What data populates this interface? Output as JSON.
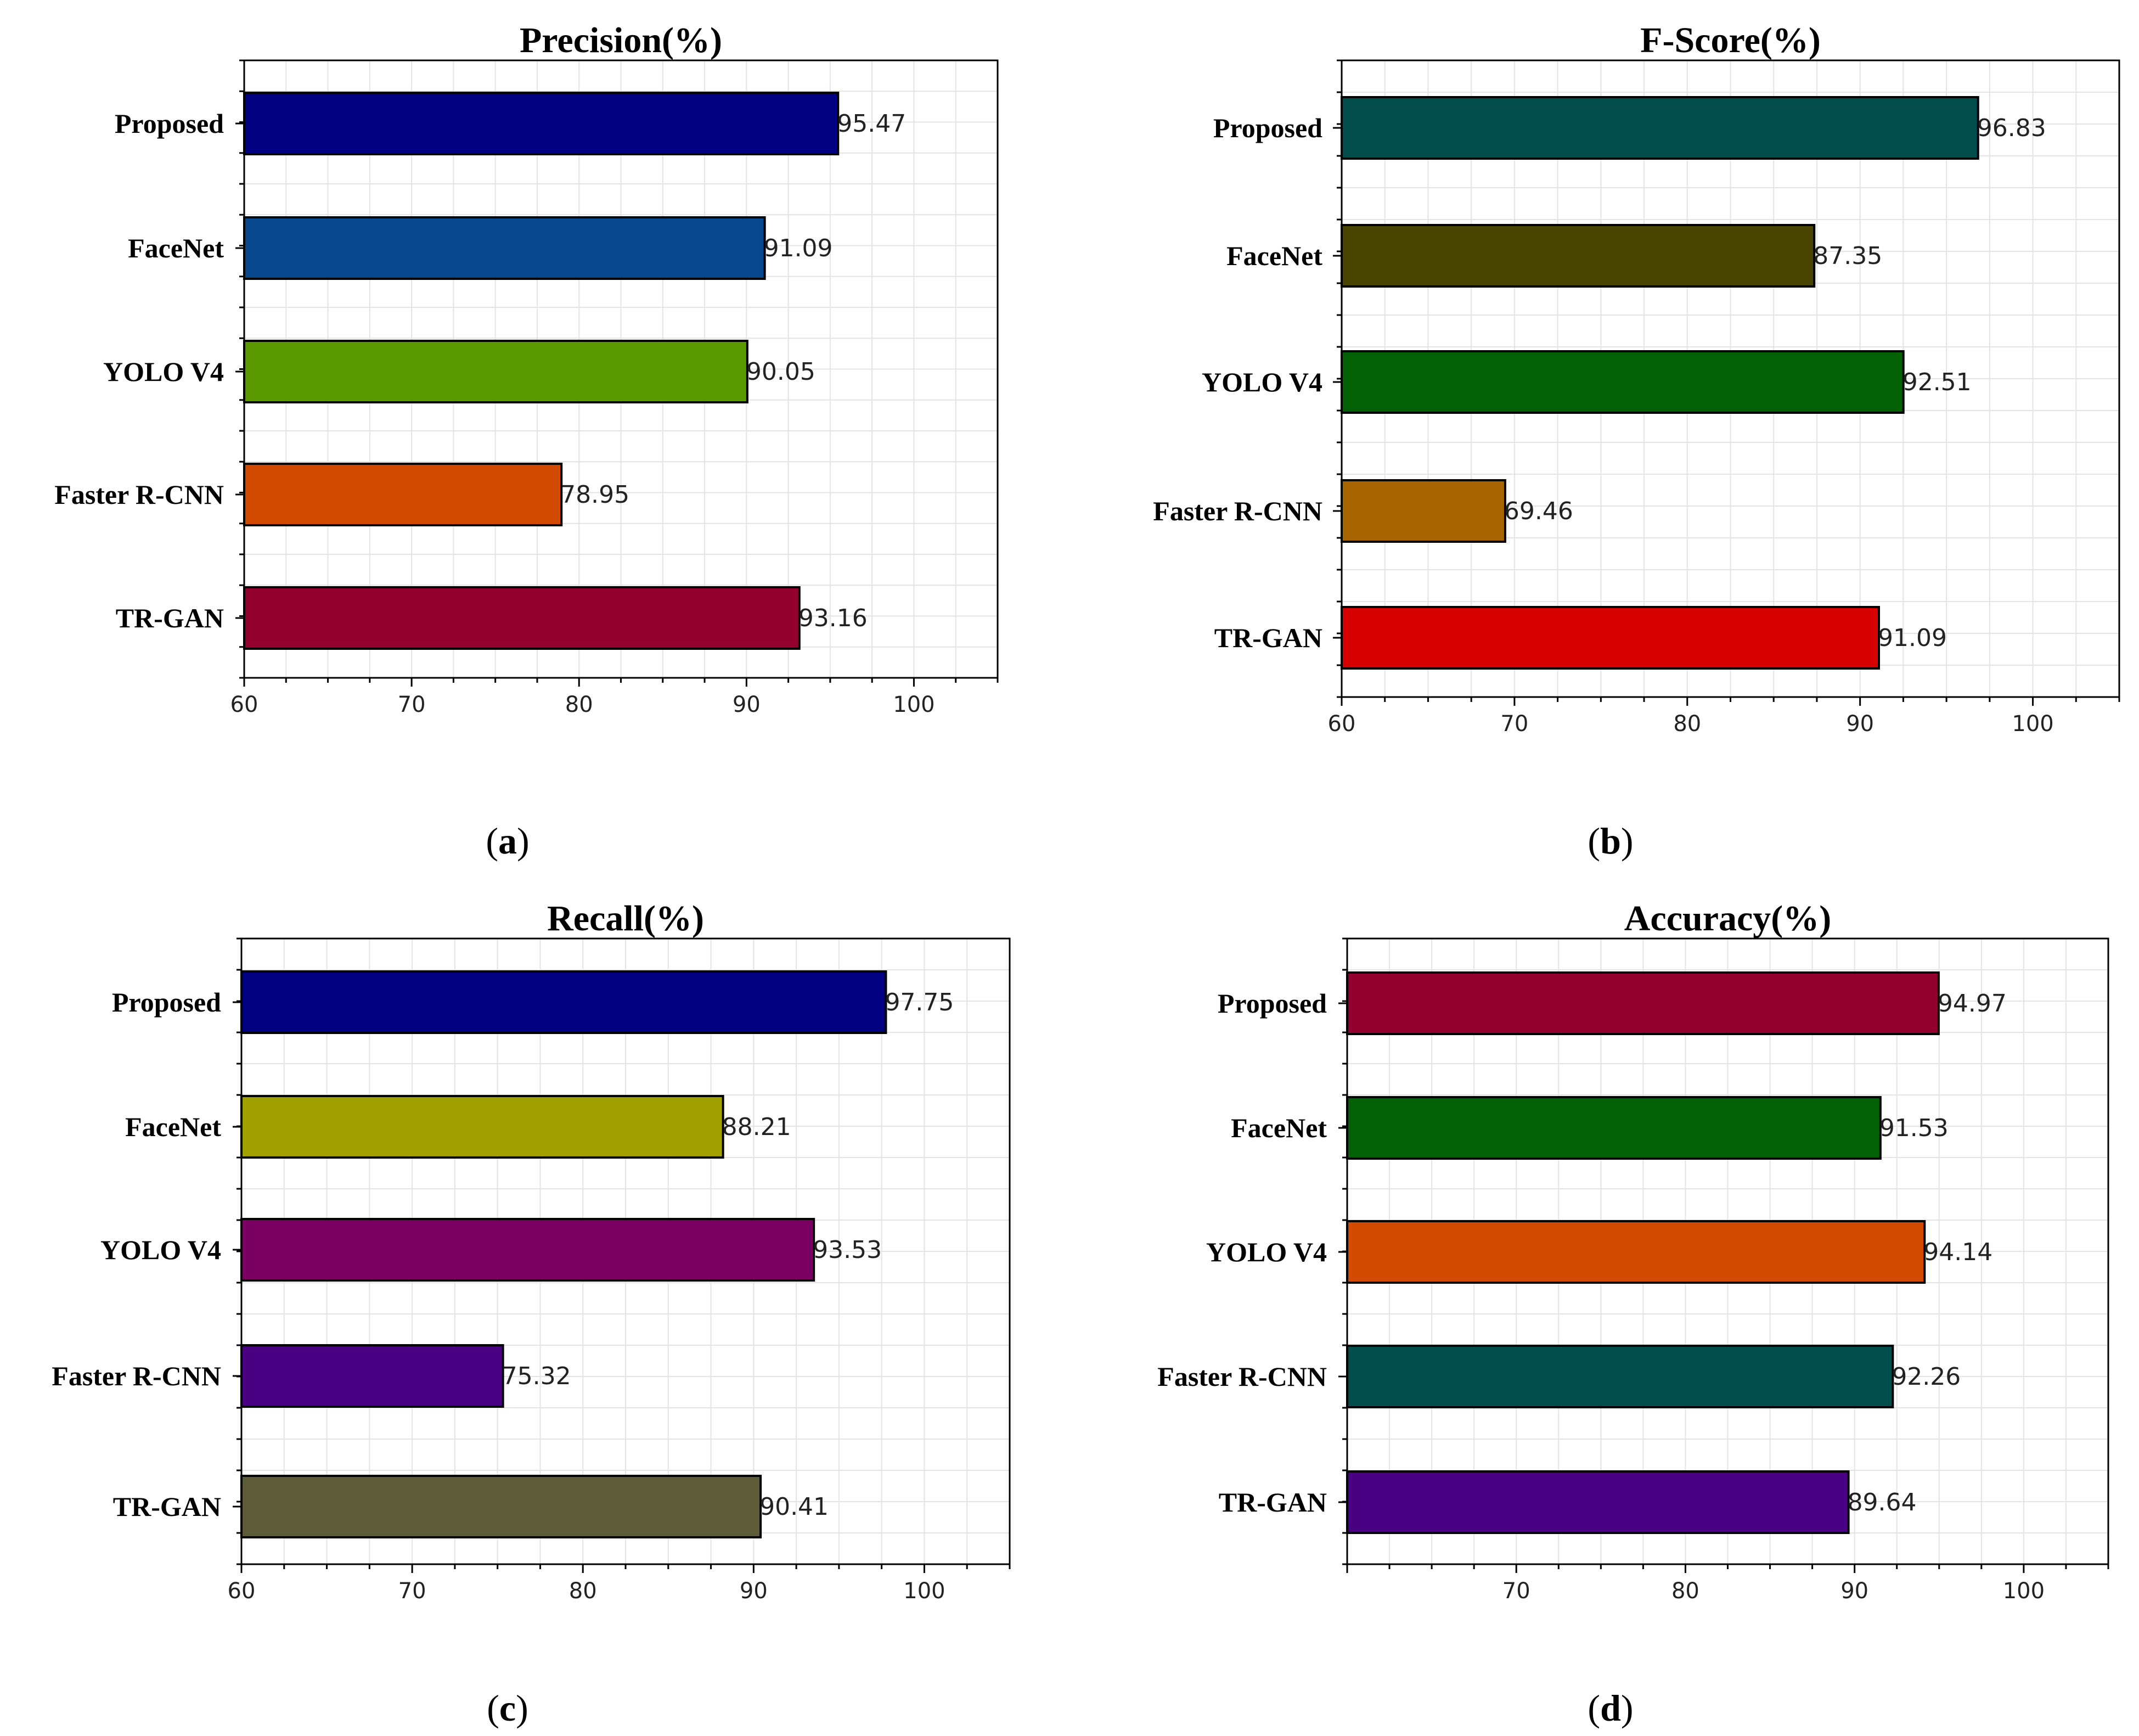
{
  "chart_data": [
    {
      "type": "bar",
      "orientation": "horizontal",
      "title": "Precision(%)",
      "caption": "a",
      "categories": [
        "Proposed",
        "FaceNet",
        "YOLO V4",
        "Faster R-CNN",
        "TR-GAN"
      ],
      "values": [
        95.47,
        91.09,
        90.05,
        78.95,
        93.16
      ],
      "value_labels": [
        "95.47",
        "91.09",
        "90.05",
        "78.95",
        "93.16"
      ],
      "colors": [
        "#000080",
        "#08478c",
        "#5a9a00",
        "#d24a00",
        "#940030"
      ],
      "xlim": [
        60,
        105
      ],
      "xticks": [
        60,
        70,
        80,
        90,
        100
      ],
      "xtick_labels": [
        "60",
        "70",
        "80",
        "90",
        "100"
      ],
      "grid": true
    },
    {
      "type": "bar",
      "orientation": "horizontal",
      "title": "F-Score(%)",
      "caption": "b",
      "categories": [
        "Proposed",
        "FaceNet",
        "YOLO V4",
        "Faster R-CNN",
        "TR-GAN"
      ],
      "values": [
        96.83,
        87.35,
        92.51,
        69.46,
        91.09
      ],
      "value_labels": [
        "96.83",
        "87.35",
        "92.51",
        "69.46",
        "91.09"
      ],
      "colors": [
        "#034d4d",
        "#4a4500",
        "#046004",
        "#a76400",
        "#d60000"
      ],
      "xlim": [
        60,
        105
      ],
      "xticks": [
        60,
        70,
        80,
        90,
        100
      ],
      "xtick_labels": [
        "60",
        "70",
        "80",
        "90",
        "100"
      ],
      "grid": true
    },
    {
      "type": "bar",
      "orientation": "horizontal",
      "title": "Recall(%)",
      "caption": "c",
      "categories": [
        "Proposed",
        "FaceNet",
        "YOLO V4",
        "Faster R-CNN",
        "TR-GAN"
      ],
      "values": [
        97.75,
        88.21,
        93.53,
        75.32,
        90.41
      ],
      "value_labels": [
        "97.75",
        "88.21",
        "93.53",
        "75.32",
        "90.41"
      ],
      "colors": [
        "#000080",
        "#a0a000",
        "#7a0062",
        "#4a0082",
        "#5c5c38"
      ],
      "xlim": [
        60,
        105
      ],
      "xticks": [
        60,
        70,
        80,
        90,
        100
      ],
      "xtick_labels": [
        "60",
        "70",
        "80",
        "90",
        "100"
      ],
      "grid": true
    },
    {
      "type": "bar",
      "orientation": "horizontal",
      "title": "Accuracy(%)",
      "caption": "d",
      "categories": [
        "Proposed",
        "FaceNet",
        "YOLO V4",
        "Faster R-CNN",
        "TR-GAN"
      ],
      "values": [
        94.97,
        91.53,
        94.14,
        92.26,
        89.64
      ],
      "value_labels": [
        "94.97",
        "91.53",
        "94.14",
        "92.26",
        "89.64"
      ],
      "colors": [
        "#940030",
        "#046004",
        "#d24a00",
        "#034d4d",
        "#4a0082"
      ],
      "xlim": [
        60,
        105
      ],
      "xticks": [
        70,
        80,
        90,
        100
      ],
      "xtick_labels": [
        "70",
        "80",
        "90",
        "100"
      ],
      "grid": true
    }
  ]
}
